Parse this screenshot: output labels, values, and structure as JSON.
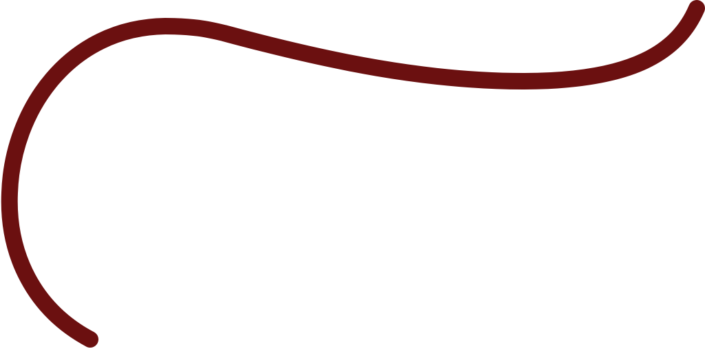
{
  "stroke": {
    "color": "#6b1010",
    "shape": "curved-line"
  },
  "background_color": "#ffffff"
}
